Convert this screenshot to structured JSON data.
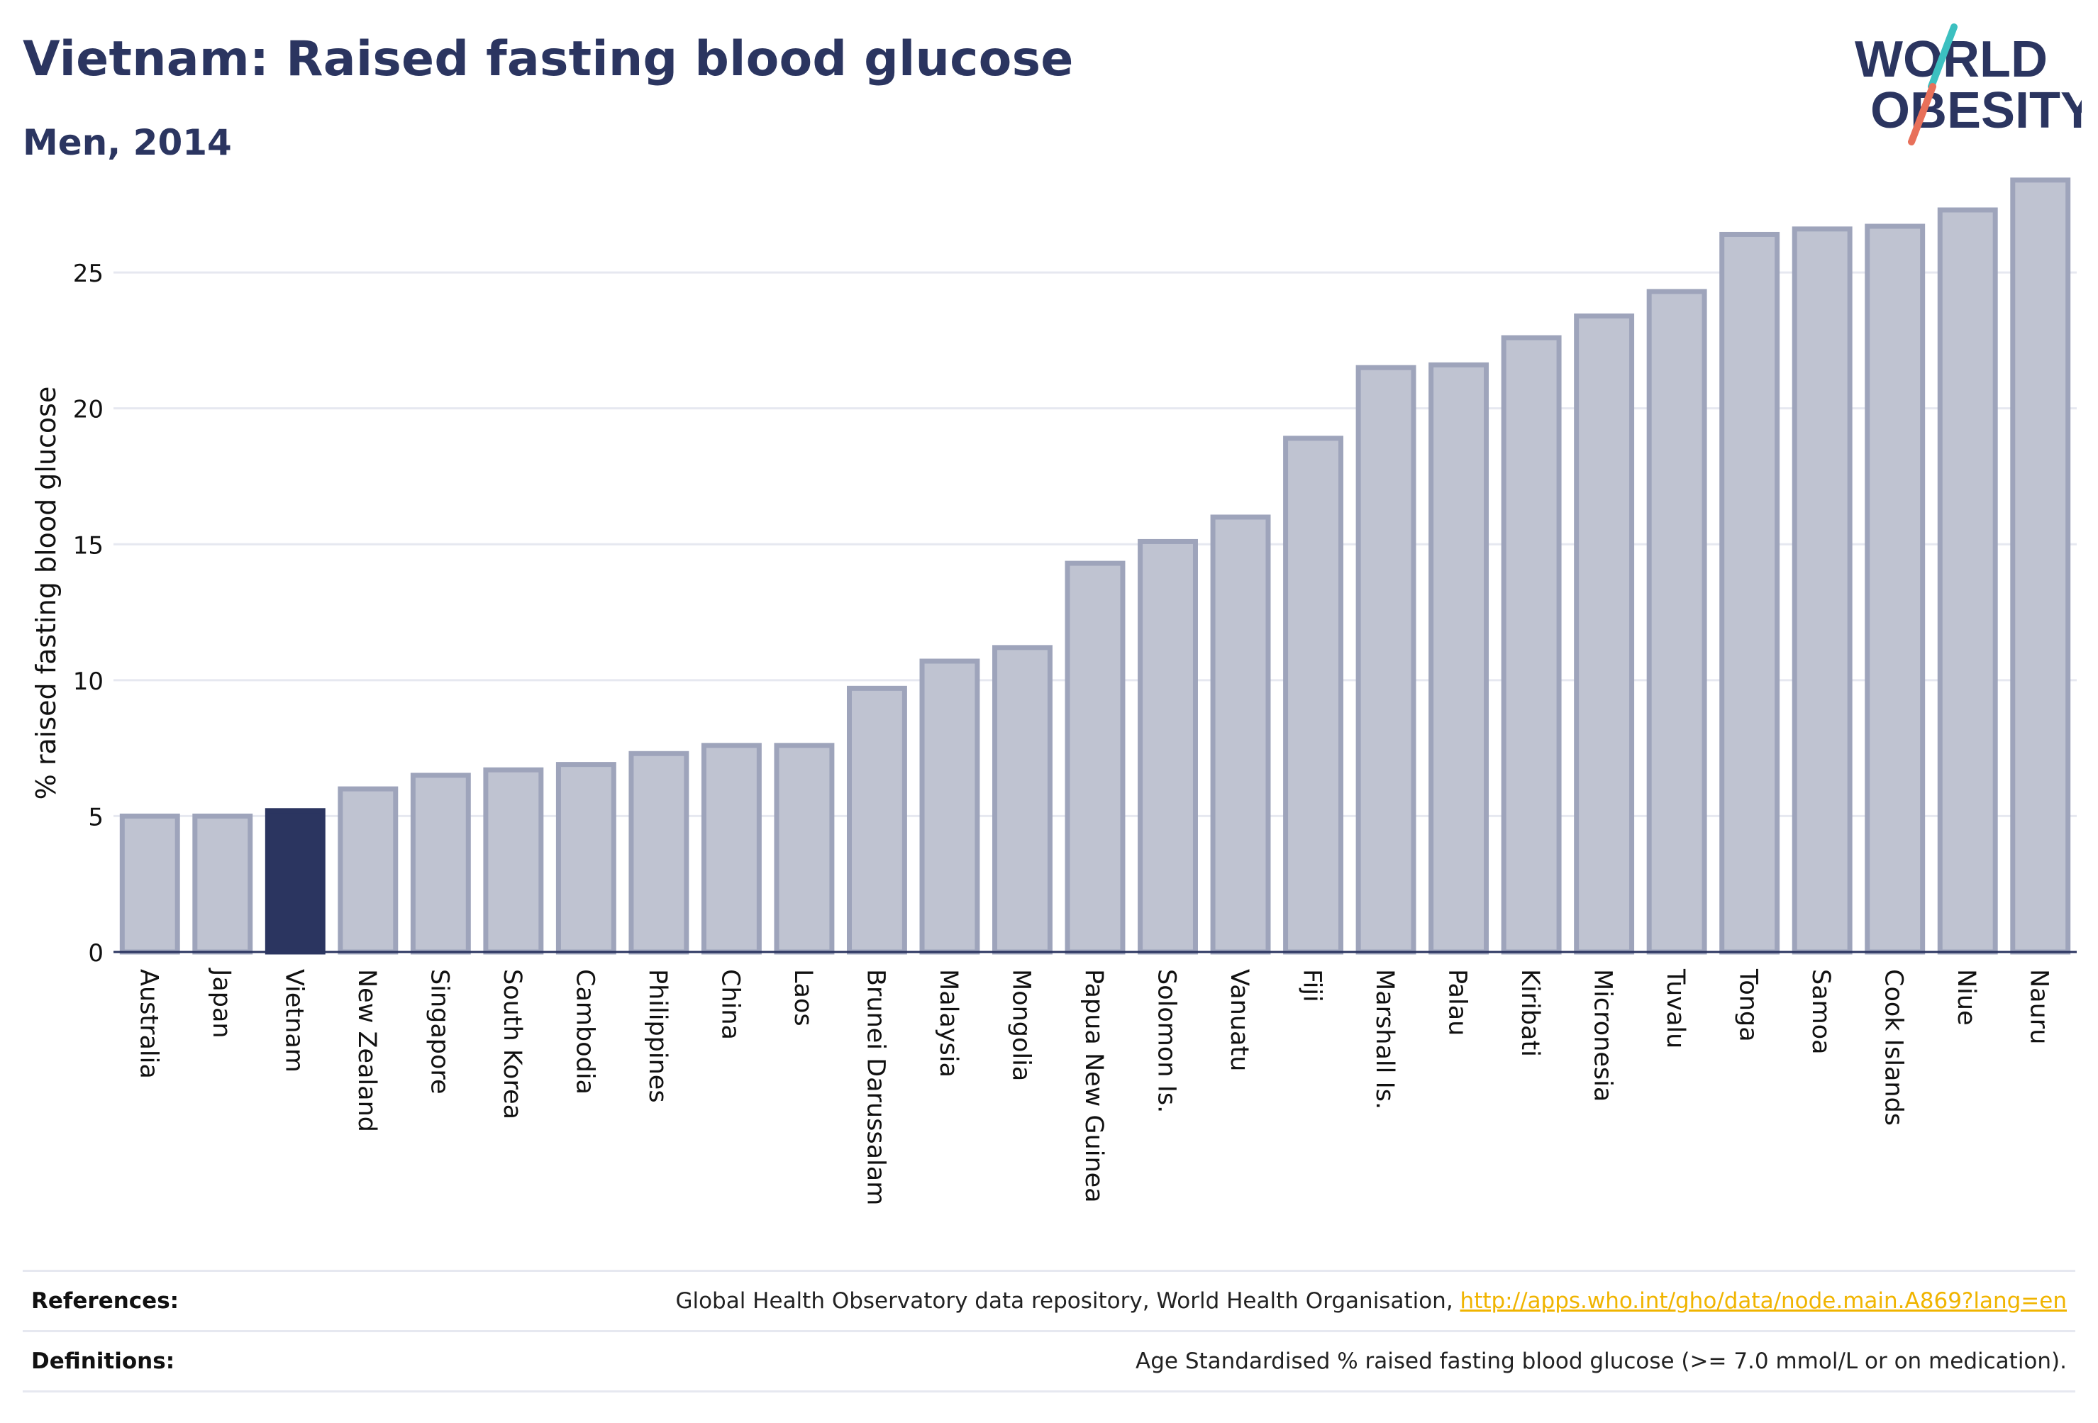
{
  "header": {
    "title": "Vietnam: Raised fasting blood glucose",
    "subtitle": "Men, 2014"
  },
  "logo": {
    "line1": "WORLD",
    "line2": "OBESITY",
    "slash_colors": [
      "#3cc0c0",
      "#e8705a"
    ]
  },
  "colors": {
    "bar": "#bfc3d1",
    "bar_outline": "#9ea4bb",
    "highlight": "#2b3560",
    "grid": "#e6e8f0",
    "text": "#2b3560",
    "link": "#f0b400"
  },
  "chart_data": {
    "type": "bar",
    "ylabel": "% raised fasting blood glucose",
    "ylim": [
      0,
      28.5
    ],
    "yticks": [
      0,
      5,
      10,
      15,
      20,
      25
    ],
    "grid": true,
    "highlight": "Vietnam",
    "categories": [
      "Australia",
      "Japan",
      "Vietnam",
      "New Zealand",
      "Singapore",
      "South Korea",
      "Cambodia",
      "Philippines",
      "China",
      "Laos",
      "Brunei Darussalam",
      "Malaysia",
      "Mongolia",
      "Papua New Guinea",
      "Solomon Is.",
      "Vanuatu",
      "Fiji",
      "Marshall Is.",
      "Palau",
      "Kiribati",
      "Micronesia",
      "Tuvalu",
      "Tonga",
      "Samoa",
      "Cook Islands",
      "Niue",
      "Nauru"
    ],
    "values": [
      5.0,
      5.0,
      5.2,
      6.0,
      6.5,
      6.7,
      6.9,
      7.3,
      7.6,
      7.6,
      9.7,
      10.7,
      11.2,
      14.3,
      15.1,
      16.0,
      18.9,
      21.5,
      21.6,
      22.6,
      23.4,
      24.3,
      26.4,
      26.6,
      26.7,
      27.3,
      28.4
    ]
  },
  "footer": {
    "references_label": "References:",
    "references_text": "Global Health Observatory data repository, World Health Organisation, ",
    "references_link": "http://apps.who.int/gho/data/node.main.A869?lang=en",
    "definitions_label": "Definitions:",
    "definitions_text": "Age Standardised % raised fasting blood glucose (>= 7.0 mmol/L or on medication)."
  }
}
